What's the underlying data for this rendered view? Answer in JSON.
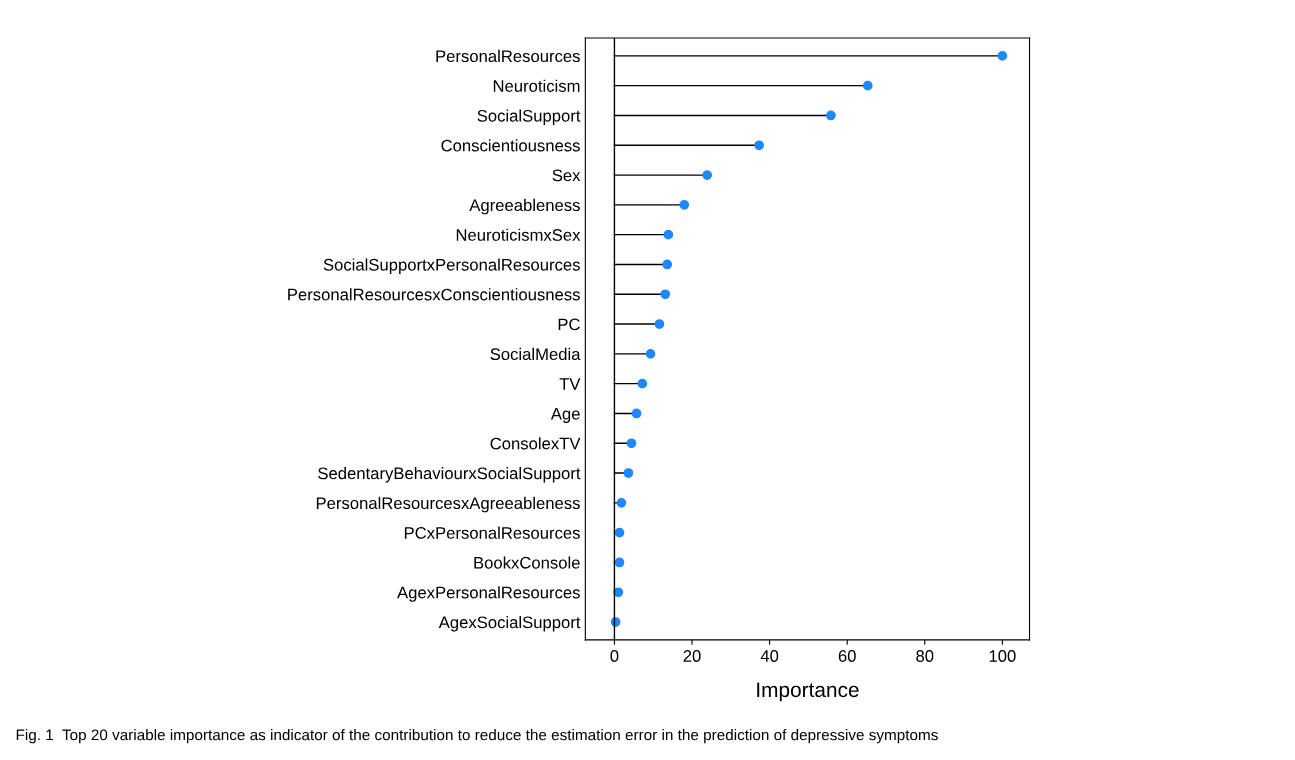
{
  "chart_data": {
    "type": "lollipop",
    "orientation": "horizontal",
    "xlabel": "Importance",
    "categories": [
      "PersonalResources",
      "Neuroticism",
      "SocialSupport",
      "Conscientiousness",
      "Sex",
      "Agreeableness",
      "NeuroticismxSex",
      "SocialSupportxPersonalResources",
      "PersonalResourcesxConscientiousness",
      "PC",
      "SocialMedia",
      "TV",
      "Age",
      "ConsolexTV",
      "SedentaryBehaviourxSocialSupport",
      "PersonalResourcesxAgreeableness",
      "PCxPersonalResources",
      "BookxConsole",
      "AgexPersonalResources",
      "AgexSocialSupport"
    ],
    "values": [
      100,
      65.3,
      55.8,
      37.3,
      23.9,
      18.0,
      13.9,
      13.6,
      13.1,
      11.6,
      9.3,
      7.2,
      5.7,
      4.4,
      3.6,
      1.8,
      1.3,
      1.3,
      1.0,
      0.3
    ],
    "color": "#1e88ff",
    "marker": "circle",
    "xlim": [
      -7.5,
      107
    ],
    "xticks": [
      0,
      20,
      40,
      60,
      80,
      100
    ],
    "annotations": [
      "Fig. 1  Top 20 variable importance as indicator of the contribution to reduce the estimation error in the prediction of depressive symptoms"
    ]
  }
}
